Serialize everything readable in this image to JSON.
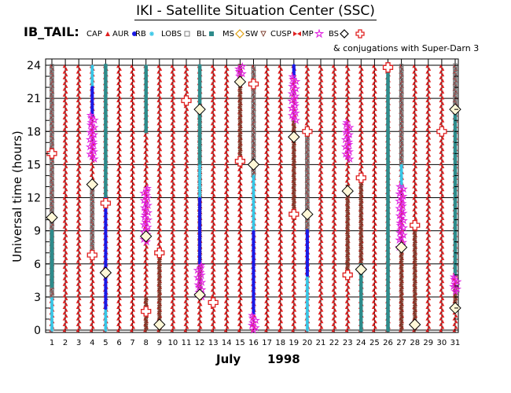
{
  "title": "IKI - Satellite Situation Center (SSC)",
  "legend_name": "IB_TAIL:",
  "conjugation_note": "& conjugations with Super-Darn 3",
  "legend": [
    {
      "label": "CAP",
      "symbol": "triangle",
      "color": "#e02020"
    },
    {
      "label": "AUR",
      "symbol": "dot",
      "color": "#1a1ae6"
    },
    {
      "label": "RB",
      "symbol": "asterisk",
      "color": "#36c6e6"
    },
    {
      "label": "LOBS",
      "symbol": "square",
      "color": "#707070"
    },
    {
      "label": "BL",
      "symbol": "filled-square",
      "color": "#2e8b8b"
    },
    {
      "label": "MS",
      "symbol": "diamond",
      "color": "#e0a010"
    },
    {
      "label": "SW",
      "symbol": "inv-triangle",
      "color": "#7a3a2a"
    },
    {
      "label": "CUSP",
      "symbol": "bow",
      "color": "#e02020"
    },
    {
      "label": "MP",
      "symbol": "star",
      "color": "#e020e0"
    },
    {
      "label": "BS",
      "symbol": "big-diamond",
      "color": "#000000"
    },
    {
      "label": "",
      "symbol": "cross",
      "color": "#e02020"
    }
  ],
  "chart_data": {
    "type": "scatter",
    "title": "IKI - Satellite Situation Center (SSC)",
    "ylabel": "Universal time (hours)",
    "xlabel_month": "July",
    "xlabel_year": "1998",
    "xlim": [
      1,
      31
    ],
    "ylim": [
      0,
      24
    ],
    "x_ticks": [
      1,
      2,
      3,
      4,
      5,
      6,
      7,
      8,
      9,
      10,
      11,
      12,
      13,
      14,
      15,
      16,
      17,
      18,
      19,
      20,
      21,
      22,
      23,
      24,
      25,
      26,
      27,
      28,
      29,
      30,
      31
    ],
    "y_ticks": [
      0,
      3,
      6,
      9,
      12,
      15,
      18,
      21,
      24
    ],
    "grid": true,
    "day_regions": [
      {
        "day": 1,
        "segments": [
          [
            "CAP",
            0,
            24
          ],
          [
            "RB",
            0,
            3
          ],
          [
            "LOBS",
            3,
            11
          ],
          [
            "BL",
            4,
            9
          ],
          [
            "LOBS",
            11,
            24
          ]
        ]
      },
      {
        "day": 2,
        "segments": [
          [
            "CAP",
            0,
            24
          ]
        ]
      },
      {
        "day": 3,
        "segments": [
          [
            "CAP",
            0,
            24
          ]
        ]
      },
      {
        "day": 4,
        "segments": [
          [
            "CAP",
            0,
            24
          ],
          [
            "LOBS",
            7,
            13
          ],
          [
            "MP",
            15.5,
            19.5
          ],
          [
            "AUR",
            19.5,
            22
          ],
          [
            "RB",
            22,
            24
          ]
        ]
      },
      {
        "day": 5,
        "segments": [
          [
            "CAP",
            0,
            24
          ],
          [
            "RB",
            0,
            2
          ],
          [
            "AUR",
            2,
            12
          ],
          [
            "BL",
            12,
            24
          ]
        ]
      },
      {
        "day": 6,
        "segments": [
          [
            "CAP",
            0,
            24
          ]
        ]
      },
      {
        "day": 7,
        "segments": [
          [
            "CAP",
            0,
            24
          ]
        ]
      },
      {
        "day": 8,
        "segments": [
          [
            "SW",
            0,
            3
          ],
          [
            "MP",
            8,
            13
          ],
          [
            "BL",
            18,
            24
          ],
          [
            "CAP",
            0,
            24
          ]
        ]
      },
      {
        "day": 9,
        "segments": [
          [
            "SW",
            0,
            7
          ],
          [
            "CAP",
            0,
            24
          ]
        ]
      },
      {
        "day": 10,
        "segments": [
          [
            "CAP",
            0,
            24
          ]
        ]
      },
      {
        "day": 11,
        "segments": [
          [
            "CAP",
            0,
            24
          ]
        ]
      },
      {
        "day": 12,
        "segments": [
          [
            "SW",
            3,
            20
          ],
          [
            "MP",
            3,
            6
          ],
          [
            "AUR",
            6,
            12
          ],
          [
            "RB",
            12,
            15
          ],
          [
            "BL",
            15,
            24
          ],
          [
            "CAP",
            0,
            24
          ]
        ]
      },
      {
        "day": 13,
        "segments": [
          [
            "CAP",
            0,
            24
          ]
        ]
      },
      {
        "day": 14,
        "segments": [
          [
            "CAP",
            0,
            24
          ]
        ]
      },
      {
        "day": 15,
        "segments": [
          [
            "SW",
            15,
            24
          ],
          [
            "MP",
            23,
            24
          ],
          [
            "CAP",
            0,
            24
          ]
        ]
      },
      {
        "day": 16,
        "segments": [
          [
            "MP",
            0,
            1.5
          ],
          [
            "AUR",
            1.5,
            9
          ],
          [
            "RB",
            9,
            14
          ],
          [
            "LOBS",
            14,
            24
          ],
          [
            "CAP",
            0,
            24
          ]
        ]
      },
      {
        "day": 17,
        "segments": [
          [
            "CAP",
            0,
            24
          ]
        ]
      },
      {
        "day": 18,
        "segments": [
          [
            "CAP",
            0,
            24
          ]
        ]
      },
      {
        "day": 19,
        "segments": [
          [
            "MP",
            19,
            23
          ],
          [
            "AUR",
            23,
            24
          ],
          [
            "SW",
            10,
            19
          ],
          [
            "CAP",
            0,
            24
          ]
        ]
      },
      {
        "day": 20,
        "segments": [
          [
            "RB",
            0,
            5
          ],
          [
            "AUR",
            5,
            9
          ],
          [
            "LOBS",
            9,
            18
          ],
          [
            "CAP",
            0,
            24
          ]
        ]
      },
      {
        "day": 21,
        "segments": [
          [
            "CAP",
            0,
            24
          ]
        ]
      },
      {
        "day": 22,
        "segments": [
          [
            "CAP",
            0,
            24
          ]
        ]
      },
      {
        "day": 23,
        "segments": [
          [
            "SW",
            5,
            13
          ],
          [
            "MP",
            15.5,
            19
          ],
          [
            "CAP",
            0,
            24
          ]
        ]
      },
      {
        "day": 24,
        "segments": [
          [
            "BL",
            0,
            6
          ],
          [
            "SW",
            6,
            14
          ],
          [
            "CAP",
            0,
            24
          ]
        ]
      },
      {
        "day": 25,
        "segments": [
          [
            "CAP",
            0,
            24
          ]
        ]
      },
      {
        "day": 26,
        "segments": [
          [
            "BL",
            0,
            24
          ],
          [
            "CAP",
            0,
            24
          ]
        ]
      },
      {
        "day": 27,
        "segments": [
          [
            "SW",
            0,
            7.5
          ],
          [
            "MP",
            7.5,
            13
          ],
          [
            "RB",
            13,
            15
          ],
          [
            "LOBS",
            15,
            24
          ],
          [
            "CAP",
            0,
            24
          ]
        ]
      },
      {
        "day": 28,
        "segments": [
          [
            "SW",
            0,
            9.5
          ],
          [
            "CAP",
            0,
            24
          ]
        ]
      },
      {
        "day": 29,
        "segments": [
          [
            "CAP",
            0,
            24
          ]
        ]
      },
      {
        "day": 30,
        "segments": [
          [
            "CAP",
            0,
            24
          ]
        ]
      },
      {
        "day": 31,
        "segments": [
          [
            "SW",
            2,
            4
          ],
          [
            "MP",
            3.5,
            5
          ],
          [
            "BL",
            5,
            20
          ],
          [
            "LOBS",
            20,
            24
          ],
          [
            "CAP",
            0,
            24
          ]
        ]
      }
    ],
    "bow_shock_crossings": [
      {
        "day": 1,
        "hour": 10.2
      },
      {
        "day": 4,
        "hour": 13.2
      },
      {
        "day": 5,
        "hour": 5.2
      },
      {
        "day": 8,
        "hour": 8.5
      },
      {
        "day": 9,
        "hour": 0.5
      },
      {
        "day": 12,
        "hour": 20
      },
      {
        "day": 12,
        "hour": 3.2
      },
      {
        "day": 15,
        "hour": 22.5
      },
      {
        "day": 16,
        "hour": 15
      },
      {
        "day": 19,
        "hour": 17.5
      },
      {
        "day": 20,
        "hour": 10.5
      },
      {
        "day": 23,
        "hour": 12.6
      },
      {
        "day": 24,
        "hour": 5.5
      },
      {
        "day": 27,
        "hour": 7.5
      },
      {
        "day": 28,
        "hour": 0.5
      },
      {
        "day": 31,
        "hour": 20
      },
      {
        "day": 31,
        "hour": 2
      }
    ],
    "conjugations": [
      {
        "day": 1,
        "hour": 16
      },
      {
        "day": 4,
        "hour": 6.8
      },
      {
        "day": 5,
        "hour": 11.5
      },
      {
        "day": 8,
        "hour": 1.7
      },
      {
        "day": 9,
        "hour": 7
      },
      {
        "day": 11,
        "hour": 20.8
      },
      {
        "day": 13,
        "hour": 2.5
      },
      {
        "day": 15,
        "hour": 15.3
      },
      {
        "day": 16,
        "hour": 22.3
      },
      {
        "day": 19,
        "hour": 10.5
      },
      {
        "day": 20,
        "hour": 18
      },
      {
        "day": 23,
        "hour": 5
      },
      {
        "day": 24,
        "hour": 13.8
      },
      {
        "day": 26,
        "hour": 23.8
      },
      {
        "day": 28,
        "hour": 9.5
      },
      {
        "day": 30,
        "hour": 18
      }
    ]
  }
}
